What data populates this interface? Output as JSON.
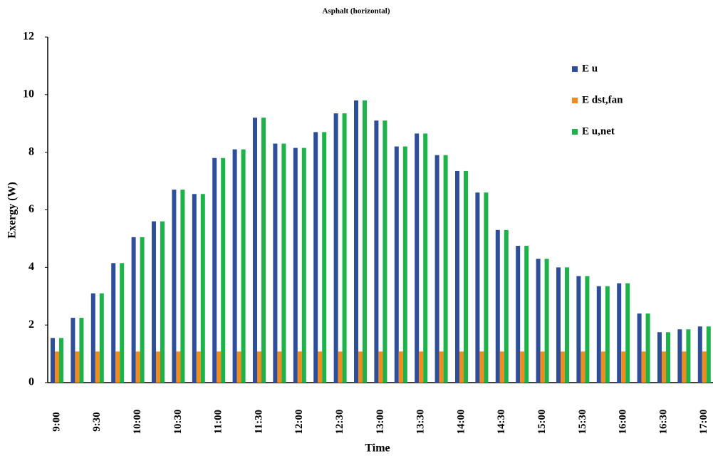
{
  "chart_data": {
    "type": "bar",
    "title": "Asphalt (horizontal)",
    "x_label": "Time",
    "y_label": "Exergy (W)",
    "categories": [
      "9:00",
      null,
      "9:30",
      null,
      "10:00",
      null,
      "10:30",
      null,
      "11:00",
      null,
      "11:30",
      null,
      "12:00",
      null,
      "12:30",
      null,
      "13:00",
      null,
      "13:30",
      null,
      "14:00",
      null,
      "14:30",
      null,
      "15:00",
      null,
      "15:30",
      null,
      "16:00",
      null,
      "16:30",
      null,
      "17:00"
    ],
    "series": [
      {
        "name": "E u",
        "color": "#2e4e99",
        "values": [
          1.55,
          2.25,
          3.1,
          4.15,
          5.05,
          5.6,
          6.7,
          6.55,
          7.8,
          8.1,
          9.2,
          8.3,
          8.15,
          8.7,
          9.35,
          9.8,
          9.1,
          8.2,
          8.65,
          7.9,
          7.35,
          6.6,
          5.3,
          4.75,
          4.3,
          4.0,
          3.7,
          3.35,
          3.45,
          2.4,
          1.75,
          1.85,
          1.95
        ]
      },
      {
        "name": "E dst,fan",
        "color": "#f08c1e",
        "values": [
          1.08,
          1.08,
          1.08,
          1.08,
          1.08,
          1.08,
          1.08,
          1.08,
          1.08,
          1.08,
          1.08,
          1.08,
          1.08,
          1.08,
          1.08,
          1.08,
          1.08,
          1.08,
          1.08,
          1.08,
          1.08,
          1.08,
          1.08,
          1.08,
          1.08,
          1.08,
          1.08,
          1.08,
          1.08,
          1.08,
          1.08,
          1.08,
          1.08
        ]
      },
      {
        "name": "E u,net",
        "color": "#1db34a",
        "values": [
          1.55,
          2.25,
          3.1,
          4.15,
          5.05,
          5.6,
          6.7,
          6.55,
          7.8,
          8.1,
          9.2,
          8.3,
          8.15,
          8.7,
          9.35,
          9.8,
          9.1,
          8.2,
          8.65,
          7.9,
          7.35,
          6.6,
          5.3,
          4.75,
          4.3,
          4.0,
          3.7,
          3.35,
          3.45,
          2.4,
          1.75,
          1.85,
          1.95
        ]
      }
    ],
    "ylim": [
      0,
      12
    ],
    "yticks": [
      0,
      2,
      4,
      6,
      8,
      10,
      12
    ],
    "grid": false,
    "legend": "right"
  }
}
